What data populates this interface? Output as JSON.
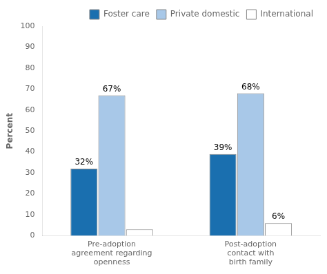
{
  "chart_data": {
    "type": "bar",
    "categories": [
      "Pre-adoption\nagreement regarding\nopenness",
      "Post-adoption\ncontact with\nbirth family"
    ],
    "series": [
      {
        "name": "Foster care",
        "color": "#1a6faf",
        "values": [
          32,
          39
        ],
        "value_labels": [
          "32%",
          "39%"
        ]
      },
      {
        "name": "Private domestic",
        "color": "#a8c8e8",
        "values": [
          67,
          68
        ],
        "value_labels": [
          "67%",
          "68%"
        ]
      },
      {
        "name": "International",
        "color": "#ffffff",
        "values": [
          3,
          6
        ],
        "value_labels": [
          null,
          "6%"
        ]
      }
    ],
    "ylabel": "Percent",
    "ylim": [
      0,
      100
    ],
    "yticks": [
      0,
      10,
      20,
      30,
      40,
      50,
      60,
      70,
      80,
      90,
      100
    ],
    "grid": false,
    "legend": "top-right",
    "data_labels": true
  }
}
